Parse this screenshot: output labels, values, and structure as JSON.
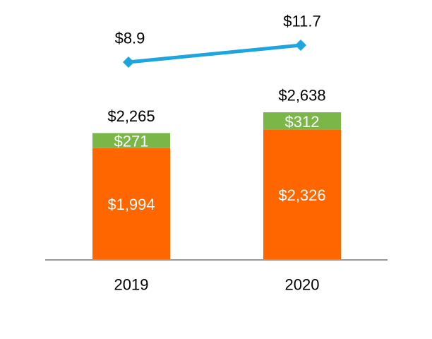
{
  "chart_data": {
    "type": "bar",
    "stacked": true,
    "categories": [
      "2019",
      "2020"
    ],
    "series": [
      {
        "values": [
          1994,
          2326
        ],
        "labels": [
          "$1,994",
          "$2,326"
        ],
        "color": "#ff6600"
      },
      {
        "values": [
          271,
          312
        ],
        "labels": [
          "$271",
          "$312"
        ],
        "color": "#7ab648"
      }
    ],
    "totals": {
      "values": [
        2265,
        2638
      ],
      "labels": [
        "$2,265",
        "$2,638"
      ]
    },
    "line_series": {
      "values": [
        8.9,
        11.7
      ],
      "labels": [
        "$8.9",
        "$11.7"
      ],
      "color": "#1ea5de",
      "marker": "diamond"
    },
    "legend": "none",
    "grid": false,
    "axis_color": "#999999"
  }
}
